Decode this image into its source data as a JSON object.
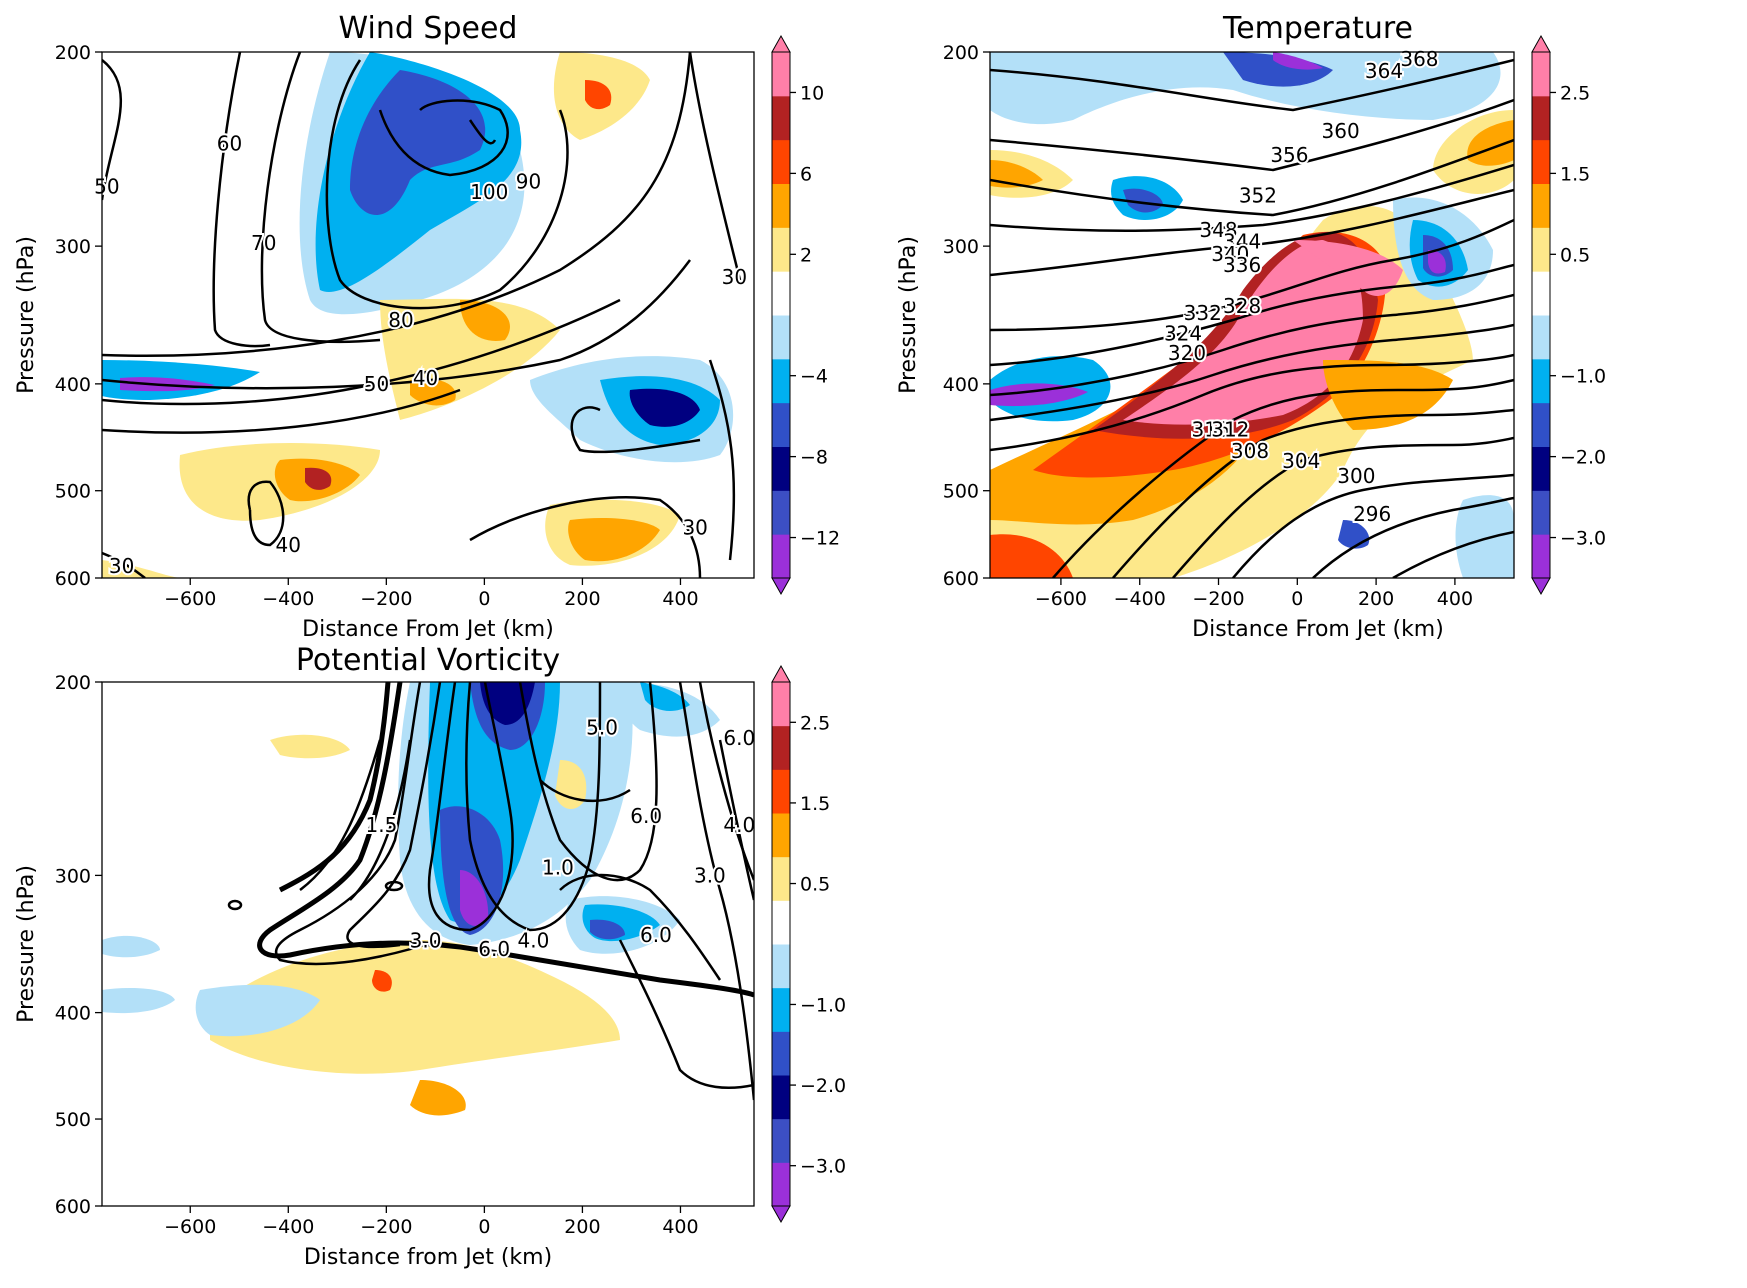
{
  "palette": {
    "fill_levels": [
      "#9b30d9",
      "#3c4fc4",
      "#000080",
      "#3050c8",
      "#00b0f0",
      "#b3e0f8",
      "#ffffff",
      "#fde88a",
      "#ffa500",
      "#ff4500",
      "#b22222",
      "#ff7fa8"
    ],
    "line_color": "#000000"
  },
  "chart_data": [
    {
      "id": "wind",
      "type": "contour",
      "title": "Wind Speed",
      "xlabel": "Distance From Jet (km)",
      "ylabel": "Pressure (hPa)",
      "xlim": [
        -780,
        550
      ],
      "ylim": [
        600,
        200
      ],
      "yscale": "log",
      "xticks": [
        "−600",
        "−400",
        "−200",
        "0",
        "200",
        "400"
      ],
      "xtick_values": [
        -600,
        -400,
        -200,
        0,
        200,
        400
      ],
      "yticks": [
        "200",
        "300",
        "400",
        "500",
        "600"
      ],
      "ytick_values": [
        200,
        300,
        400,
        500,
        600
      ],
      "colorbar": {
        "ticks": [
          "10",
          "6",
          "2",
          "−4",
          "−8",
          "−12"
        ],
        "tick_values": [
          10,
          6,
          2,
          -4,
          -8,
          -12
        ],
        "levels": [
          -14,
          -12,
          -10,
          -8,
          -6,
          -4,
          -2,
          2,
          4,
          6,
          8,
          10,
          12
        ],
        "extend": "both"
      },
      "contour_labels": [
        {
          "text": "60",
          "x": -520,
          "y": 242
        },
        {
          "text": "50",
          "x": -770,
          "y": 265
        },
        {
          "text": "70",
          "x": -450,
          "y": 298
        },
        {
          "text": "100",
          "x": 10,
          "y": 268
        },
        {
          "text": "90",
          "x": 90,
          "y": 262
        },
        {
          "text": "80",
          "x": -170,
          "y": 350
        },
        {
          "text": "50",
          "x": -220,
          "y": 400
        },
        {
          "text": "40",
          "x": -120,
          "y": 395
        },
        {
          "text": "30",
          "x": 510,
          "y": 320
        },
        {
          "text": "40",
          "x": -400,
          "y": 560
        },
        {
          "text": "30",
          "x": 430,
          "y": 540
        },
        {
          "text": "30",
          "x": -740,
          "y": 585
        }
      ]
    },
    {
      "id": "temp",
      "type": "contour",
      "title": "Temperature",
      "xlabel": "Distance From Jet (km)",
      "ylabel": "Pressure (hPa)",
      "xlim": [
        -780,
        550
      ],
      "ylim": [
        600,
        200
      ],
      "yscale": "log",
      "xticks": [
        "−600",
        "−400",
        "−200",
        "0",
        "200",
        "400"
      ],
      "xtick_values": [
        -600,
        -400,
        -200,
        0,
        200,
        400
      ],
      "yticks": [
        "200",
        "300",
        "400",
        "500",
        "600"
      ],
      "ytick_values": [
        200,
        300,
        400,
        500,
        600
      ],
      "colorbar": {
        "ticks": [
          "2.5",
          "1.5",
          "0.5",
          "−1.0",
          "−2.0",
          "−3.0"
        ],
        "tick_values": [
          2.5,
          1.5,
          0.5,
          -1.0,
          -2.0,
          -3.0
        ],
        "levels": [
          -3.5,
          -3,
          -2.5,
          -2,
          -1.5,
          -1,
          -0.5,
          0.5,
          1,
          1.5,
          2,
          2.5,
          3
        ],
        "extend": "both"
      },
      "contour_labels": [
        {
          "text": "364",
          "x": 220,
          "y": 208
        },
        {
          "text": "368",
          "x": 310,
          "y": 203
        },
        {
          "text": "360",
          "x": 110,
          "y": 236
        },
        {
          "text": "356",
          "x": -20,
          "y": 248
        },
        {
          "text": "352",
          "x": -100,
          "y": 270
        },
        {
          "text": "348",
          "x": -200,
          "y": 290
        },
        {
          "text": "344",
          "x": -140,
          "y": 297
        },
        {
          "text": "340",
          "x": -170,
          "y": 305
        },
        {
          "text": "336",
          "x": -140,
          "y": 312
        },
        {
          "text": "332",
          "x": -240,
          "y": 345
        },
        {
          "text": "328",
          "x": -140,
          "y": 340
        },
        {
          "text": "324",
          "x": -290,
          "y": 360
        },
        {
          "text": "320",
          "x": -280,
          "y": 375
        },
        {
          "text": "316",
          "x": -220,
          "y": 440
        },
        {
          "text": "312",
          "x": -170,
          "y": 440
        },
        {
          "text": "308",
          "x": -120,
          "y": 460
        },
        {
          "text": "304",
          "x": 10,
          "y": 470
        },
        {
          "text": "300",
          "x": 150,
          "y": 485
        },
        {
          "text": "296",
          "x": 190,
          "y": 525
        }
      ]
    },
    {
      "id": "pv",
      "type": "contour",
      "title": "Potential Vorticity",
      "xlabel": "Distance from Jet (km)",
      "ylabel": "Pressure (hPa)",
      "xlim": [
        -780,
        550
      ],
      "ylim": [
        600,
        200
      ],
      "yscale": "log",
      "xticks": [
        "−600",
        "−400",
        "−200",
        "0",
        "200",
        "400"
      ],
      "xtick_values": [
        -600,
        -400,
        -200,
        0,
        200,
        400
      ],
      "yticks": [
        "200",
        "300",
        "400",
        "500",
        "600"
      ],
      "ytick_values": [
        200,
        300,
        400,
        500,
        600
      ],
      "colorbar": {
        "ticks": [
          "2.5",
          "1.5",
          "0.5",
          "−1.0",
          "−2.0",
          "−3.0"
        ],
        "tick_values": [
          2.5,
          1.5,
          0.5,
          -1.0,
          -2.0,
          -3.0
        ],
        "levels": [
          -3.5,
          -3,
          -2.5,
          -2,
          -1.5,
          -1,
          -0.5,
          0.5,
          1,
          1.5,
          2,
          2.5,
          3
        ],
        "extend": "both"
      },
      "contour_labels": [
        {
          "text": "1.5",
          "x": -210,
          "y": 270
        },
        {
          "text": "5.0",
          "x": 240,
          "y": 220
        },
        {
          "text": "6.0",
          "x": 330,
          "y": 265
        },
        {
          "text": "6.0",
          "x": 520,
          "y": 225
        },
        {
          "text": "4.0",
          "x": 520,
          "y": 270
        },
        {
          "text": "1.0",
          "x": 150,
          "y": 295
        },
        {
          "text": "3.0",
          "x": 460,
          "y": 300
        },
        {
          "text": "6.0",
          "x": 350,
          "y": 340
        },
        {
          "text": "3.0",
          "x": -120,
          "y": 344
        },
        {
          "text": "4.0",
          "x": 100,
          "y": 344
        },
        {
          "text": "6.0",
          "x": 20,
          "y": 350
        }
      ]
    }
  ]
}
